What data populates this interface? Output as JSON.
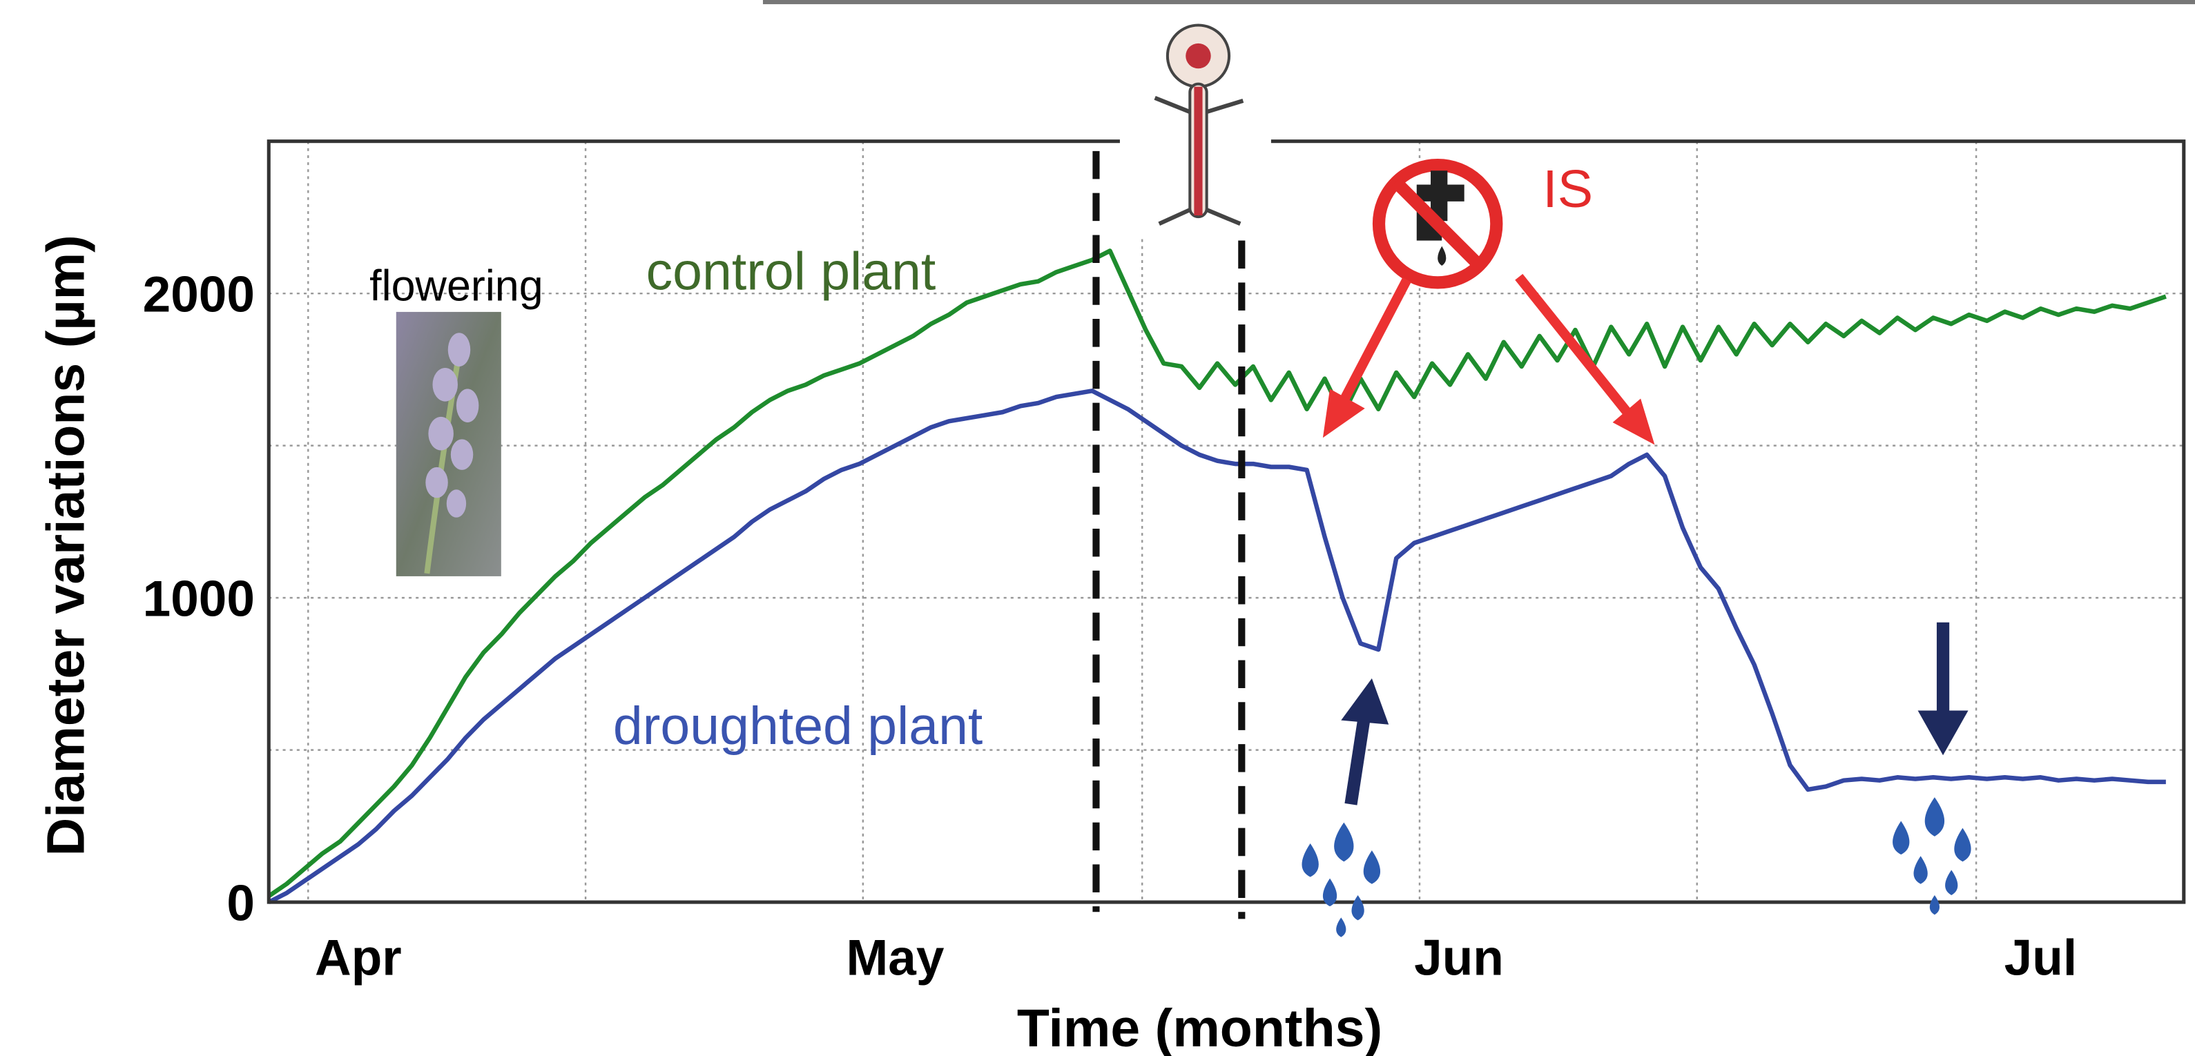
{
  "chart_data": {
    "type": "line",
    "y_label": "Diameter variations (µm)",
    "x_label": "Time (months)",
    "annotations": [
      "flowering",
      "control plant",
      "droughted plant",
      "IS"
    ],
    "x": [
      0,
      1,
      2,
      3,
      4,
      5,
      6,
      7,
      8,
      9,
      10,
      11,
      12,
      13,
      14,
      15,
      16,
      17,
      18,
      19,
      20,
      21,
      22,
      23,
      24,
      25,
      26,
      27,
      28,
      29,
      30,
      31,
      32,
      33,
      34,
      35,
      36,
      37,
      38,
      39,
      40,
      41,
      42,
      43,
      44,
      45,
      46,
      47,
      48,
      49,
      50,
      51,
      52,
      53,
      54,
      55,
      56,
      57,
      58,
      59,
      60,
      61,
      62,
      63,
      64,
      65,
      66,
      67,
      68,
      69,
      70,
      71,
      72,
      73,
      74,
      75,
      76,
      77,
      78,
      79,
      80,
      81,
      82,
      83,
      84,
      85,
      86,
      87,
      88,
      89,
      90,
      91,
      92,
      93,
      94,
      95,
      96,
      97,
      98,
      99,
      100,
      101,
      102,
      103,
      104,
      105,
      106
    ],
    "series": [
      {
        "name": "control plant",
        "color": "#1e8c2d",
        "values": [
          20,
          60,
          110,
          160,
          200,
          260,
          320,
          380,
          450,
          540,
          640,
          740,
          820,
          880,
          950,
          1010,
          1070,
          1120,
          1180,
          1230,
          1280,
          1330,
          1370,
          1420,
          1470,
          1520,
          1560,
          1610,
          1650,
          1680,
          1700,
          1730,
          1750,
          1770,
          1800,
          1830,
          1860,
          1900,
          1930,
          1970,
          1990,
          2010,
          2030,
          2040,
          2070,
          2090,
          2110,
          2140,
          2010,
          1880,
          1770,
          1760,
          1690,
          1770,
          1700,
          1760,
          1650,
          1740,
          1620,
          1720,
          1600,
          1720,
          1620,
          1740,
          1660,
          1770,
          1700,
          1800,
          1720,
          1840,
          1760,
          1860,
          1780,
          1880,
          1760,
          1890,
          1800,
          1900,
          1760,
          1890,
          1780,
          1890,
          1800,
          1900,
          1830,
          1900,
          1840,
          1900,
          1860,
          1910,
          1870,
          1920,
          1880,
          1920,
          1900,
          1930,
          1910,
          1940,
          1920,
          1950,
          1930,
          1950,
          1940,
          1960,
          1950,
          1970,
          1990
        ]
      },
      {
        "name": "droughted plant",
        "color": "#3447a3",
        "values": [
          0,
          30,
          70,
          110,
          150,
          190,
          240,
          300,
          350,
          410,
          470,
          540,
          600,
          650,
          700,
          750,
          800,
          840,
          880,
          920,
          960,
          1000,
          1040,
          1080,
          1120,
          1160,
          1200,
          1250,
          1290,
          1320,
          1350,
          1390,
          1420,
          1440,
          1470,
          1500,
          1530,
          1560,
          1580,
          1590,
          1600,
          1610,
          1630,
          1640,
          1660,
          1670,
          1680,
          1650,
          1620,
          1580,
          1540,
          1500,
          1470,
          1450,
          1440,
          1440,
          1430,
          1430,
          1420,
          1200,
          1000,
          850,
          830,
          1130,
          1180,
          1200,
          1220,
          1240,
          1260,
          1280,
          1300,
          1320,
          1340,
          1360,
          1380,
          1400,
          1440,
          1470,
          1400,
          1230,
          1100,
          1030,
          900,
          780,
          620,
          450,
          370,
          380,
          400,
          405,
          400,
          410,
          405,
          410,
          405,
          410,
          405,
          410,
          405,
          410,
          400,
          405,
          400,
          405,
          400,
          395,
          395
        ]
      }
    ],
    "xlim": [
      0,
      107
    ],
    "xticks": [
      {
        "value": 5,
        "label": "Apr"
      },
      {
        "value": 35,
        "label": "May"
      },
      {
        "value": 66.5,
        "label": "Jun"
      },
      {
        "value": 99,
        "label": "Jul"
      }
    ],
    "xgrid": [
      2.2,
      17.7,
      33.2,
      48.8,
      64.3,
      79.8,
      95.4
    ],
    "ylim": [
      0,
      2500
    ],
    "yticks": [
      0,
      1000,
      2000
    ],
    "yminor": [
      500,
      1500
    ],
    "grid": true
  }
}
